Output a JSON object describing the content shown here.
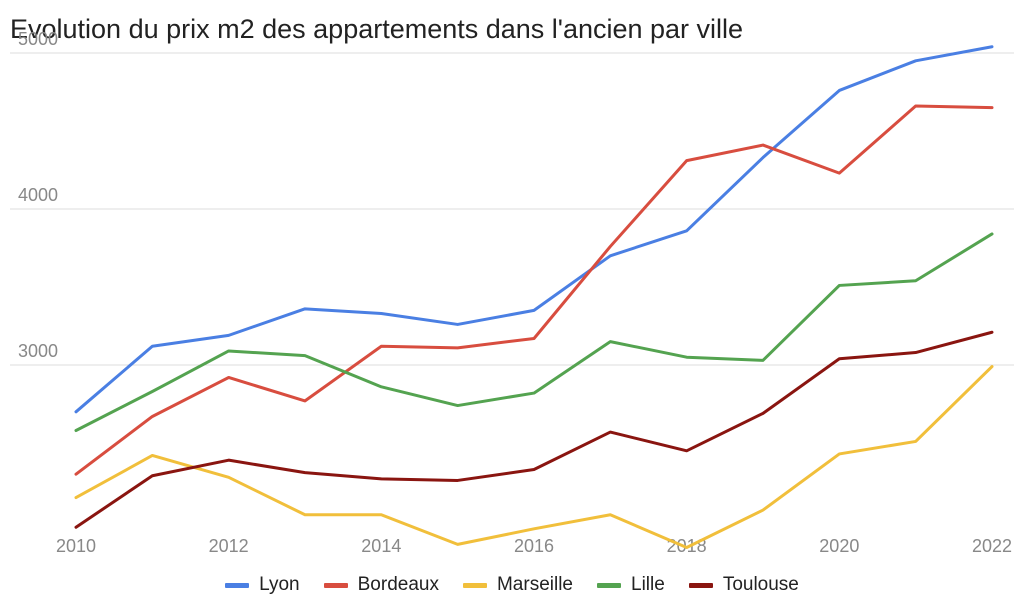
{
  "chart_data": {
    "type": "line",
    "title": "Evolution du prix m2 des appartements dans l'ancien par ville",
    "xlabel": "",
    "ylabel": "",
    "x": [
      2010,
      2011,
      2012,
      2013,
      2014,
      2015,
      2016,
      2017,
      2018,
      2019,
      2020,
      2021,
      2022
    ],
    "x_ticks": [
      "2010",
      "2012",
      "2014",
      "2016",
      "2018",
      "2020",
      "2022"
    ],
    "y_ticks": [
      "3000",
      "4000",
      "5000"
    ],
    "xlim": [
      2010,
      2022
    ],
    "ylim": [
      2100,
      5050
    ],
    "grid": true,
    "legend_position": "bottom",
    "series": [
      {
        "name": "Lyon",
        "color": "#4a7fe3",
        "values": [
          2700,
          3120,
          3190,
          3360,
          3330,
          3260,
          3350,
          3700,
          3860,
          4330,
          4760,
          4950,
          5040
        ]
      },
      {
        "name": "Bordeaux",
        "color": "#d84d3f",
        "values": [
          2300,
          2670,
          2920,
          2770,
          3120,
          3110,
          3170,
          3760,
          4310,
          4410,
          4230,
          4660,
          4650
        ]
      },
      {
        "name": "Marseille",
        "color": "#f1bf3b",
        "values": [
          2150,
          2420,
          2280,
          2040,
          2040,
          1850,
          1950,
          2040,
          1830,
          2070,
          2430,
          2510,
          2990
        ]
      },
      {
        "name": "Lille",
        "color": "#54a350",
        "values": [
          2580,
          2830,
          3090,
          3060,
          2860,
          2740,
          2820,
          3150,
          3050,
          3030,
          3510,
          3540,
          3840
        ]
      },
      {
        "name": "Toulouse",
        "color": "#8a1510",
        "values": [
          1960,
          2290,
          2390,
          2310,
          2270,
          2260,
          2330,
          2570,
          2450,
          2690,
          3040,
          3080,
          3210
        ]
      }
    ]
  }
}
